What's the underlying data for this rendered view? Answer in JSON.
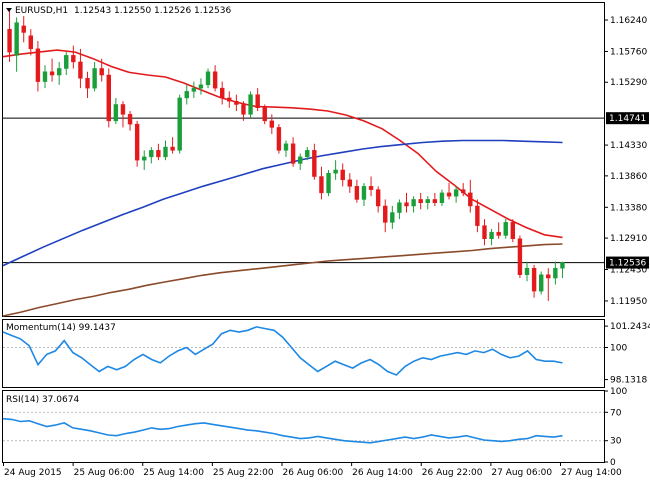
{
  "header": {
    "symbol": "EURUSD,H1",
    "open": "1.12543",
    "high": "1.12550",
    "low": "1.12526",
    "close": "1.12536"
  },
  "momentum_panel": {
    "label": "Momentum(14) 99.1437"
  },
  "rsi_panel": {
    "label": "RSI(14) 37.0674"
  },
  "colors": {
    "bull": "#1a9e3a",
    "bear": "#e31a1c",
    "sma_fast": "#e31a1c",
    "sma_mid": "#1f3fbf",
    "sma_slow": "#8b4a2a",
    "momentum": "#1e88e5",
    "rsi": "#1e88e5",
    "hline": "#000000",
    "axis": "#000000"
  },
  "chart_data": [
    {
      "type": "candlestick",
      "title": "EURUSD,H1",
      "ylim": [
        1.1172,
        1.165
      ],
      "yticks": [
        "1.16240",
        "1.15760",
        "1.15290",
        "1.14741",
        "1.14330",
        "1.13860",
        "1.13380",
        "1.12910",
        "1.12536",
        "1.12430",
        "1.11950"
      ],
      "horizontal_lines": [
        1.14741,
        1.12536
      ],
      "price_label": "1.12536",
      "level_label": "1.14741",
      "xticks": [
        "24 Aug 2015",
        "25 Aug 06:00",
        "25 Aug 14:00",
        "25 Aug 22:00",
        "26 Aug 06:00",
        "26 Aug 14:00",
        "26 Aug 22:00",
        "27 Aug 06:00",
        "27 Aug 14:00"
      ],
      "ohlc": [
        [
          1.161,
          1.164,
          1.156,
          1.1575
        ],
        [
          1.157,
          1.1628,
          1.1545,
          1.162
        ],
        [
          1.1615,
          1.163,
          1.159,
          1.1605
        ],
        [
          1.16,
          1.161,
          1.157,
          1.158
        ],
        [
          1.158,
          1.1592,
          1.1515,
          1.153
        ],
        [
          1.153,
          1.1555,
          1.152,
          1.1545
        ],
        [
          1.1545,
          1.1565,
          1.153,
          1.154
        ],
        [
          1.154,
          1.156,
          1.1525,
          1.155
        ],
        [
          1.155,
          1.1575,
          1.154,
          1.157
        ],
        [
          1.157,
          1.1585,
          1.155,
          1.156
        ],
        [
          1.156,
          1.158,
          1.152,
          1.1535
        ],
        [
          1.1535,
          1.1545,
          1.1505,
          1.152
        ],
        [
          1.152,
          1.156,
          1.1515,
          1.155
        ],
        [
          1.155,
          1.1565,
          1.153,
          1.154
        ],
        [
          1.154,
          1.155,
          1.146,
          1.147
        ],
        [
          1.147,
          1.1505,
          1.1465,
          1.1495
        ],
        [
          1.1495,
          1.15,
          1.146,
          1.148
        ],
        [
          1.148,
          1.1485,
          1.1455,
          1.1465
        ],
        [
          1.1465,
          1.147,
          1.14,
          1.141
        ],
        [
          1.141,
          1.1425,
          1.1395,
          1.1415
        ],
        [
          1.1415,
          1.143,
          1.1405,
          1.1425
        ],
        [
          1.1425,
          1.1435,
          1.141,
          1.1415
        ],
        [
          1.1415,
          1.144,
          1.141,
          1.143
        ],
        [
          1.143,
          1.1445,
          1.142,
          1.1425
        ],
        [
          1.1425,
          1.151,
          1.142,
          1.1505
        ],
        [
          1.1505,
          1.1525,
          1.1495,
          1.1515
        ],
        [
          1.1515,
          1.153,
          1.1505,
          1.152
        ],
        [
          1.152,
          1.1535,
          1.151,
          1.1525
        ],
        [
          1.1525,
          1.155,
          1.152,
          1.1545
        ],
        [
          1.1545,
          1.1555,
          1.1515,
          1.152
        ],
        [
          1.152,
          1.153,
          1.1495,
          1.1505
        ],
        [
          1.1505,
          1.1515,
          1.149,
          1.15
        ],
        [
          1.15,
          1.151,
          1.1485,
          1.1495
        ],
        [
          1.1495,
          1.15,
          1.147,
          1.148
        ],
        [
          1.148,
          1.1515,
          1.1475,
          1.151
        ],
        [
          1.151,
          1.152,
          1.1485,
          1.149
        ],
        [
          1.149,
          1.1495,
          1.1465,
          1.147
        ],
        [
          1.147,
          1.148,
          1.145,
          1.146
        ],
        [
          1.146,
          1.1465,
          1.142,
          1.1425
        ],
        [
          1.1425,
          1.144,
          1.1415,
          1.1435
        ],
        [
          1.1435,
          1.1445,
          1.14,
          1.1405
        ],
        [
          1.1405,
          1.142,
          1.1395,
          1.1415
        ],
        [
          1.1415,
          1.143,
          1.141,
          1.1425
        ],
        [
          1.1425,
          1.1435,
          1.138,
          1.1385
        ],
        [
          1.1385,
          1.14,
          1.135,
          1.136
        ],
        [
          1.136,
          1.1395,
          1.1355,
          1.139
        ],
        [
          1.139,
          1.141,
          1.138,
          1.1395
        ],
        [
          1.1395,
          1.1405,
          1.137,
          1.138
        ],
        [
          1.138,
          1.139,
          1.136,
          1.137
        ],
        [
          1.137,
          1.138,
          1.1345,
          1.135
        ],
        [
          1.135,
          1.1375,
          1.134,
          1.137
        ],
        [
          1.137,
          1.1385,
          1.1355,
          1.1365
        ],
        [
          1.1365,
          1.137,
          1.133,
          1.134
        ],
        [
          1.134,
          1.135,
          1.13,
          1.1315
        ],
        [
          1.1315,
          1.134,
          1.1305,
          1.133
        ],
        [
          1.133,
          1.135,
          1.132,
          1.1345
        ],
        [
          1.1345,
          1.136,
          1.133,
          1.134
        ],
        [
          1.134,
          1.1355,
          1.133,
          1.135
        ],
        [
          1.135,
          1.136,
          1.1335,
          1.1345
        ],
        [
          1.1345,
          1.1355,
          1.1335,
          1.135
        ],
        [
          1.135,
          1.136,
          1.134,
          1.1345
        ],
        [
          1.1345,
          1.1365,
          1.134,
          1.136
        ],
        [
          1.136,
          1.1375,
          1.135,
          1.1355
        ],
        [
          1.1355,
          1.137,
          1.1345,
          1.1365
        ],
        [
          1.1365,
          1.1375,
          1.1355,
          1.136
        ],
        [
          1.136,
          1.138,
          1.133,
          1.134
        ],
        [
          1.134,
          1.135,
          1.13,
          1.131
        ],
        [
          1.131,
          1.132,
          1.128,
          1.129
        ],
        [
          1.129,
          1.1305,
          1.128,
          1.13
        ],
        [
          1.13,
          1.1315,
          1.129,
          1.1295
        ],
        [
          1.1295,
          1.132,
          1.129,
          1.1315
        ],
        [
          1.1315,
          1.132,
          1.1285,
          1.129
        ],
        [
          1.129,
          1.1295,
          1.123,
          1.1235
        ],
        [
          1.1235,
          1.1255,
          1.1225,
          1.1245
        ],
        [
          1.1245,
          1.125,
          1.12,
          1.121
        ],
        [
          1.121,
          1.124,
          1.1205,
          1.1235
        ],
        [
          1.1235,
          1.1245,
          1.1195,
          1.123
        ],
        [
          1.123,
          1.1255,
          1.122,
          1.1245
        ],
        [
          1.1245,
          1.1255,
          1.123,
          1.1254
        ]
      ],
      "series": [
        {
          "values": [
            1.1568,
            1.1572,
            1.1575,
            1.1578,
            1.1575,
            1.1565,
            1.1553,
            1.1544,
            1.154,
            1.1537,
            1.1528,
            1.1517,
            1.1506,
            1.1498,
            1.1492,
            1.1491,
            1.149,
            1.1488,
            1.1485,
            1.1479,
            1.147,
            1.1458,
            1.144,
            1.142,
            1.1393,
            1.1372,
            1.135,
            1.1335,
            1.132,
            1.1307,
            1.1296,
            1.1292
          ]
        },
        {
          "values": [
            1.1249,
            1.1263,
            1.1277,
            1.129,
            1.1303,
            1.1315,
            1.1327,
            1.1338,
            1.135,
            1.136,
            1.137,
            1.1379,
            1.1388,
            1.1397,
            1.1404,
            1.1411,
            1.1417,
            1.1422,
            1.1427,
            1.1431,
            1.1434,
            1.1437,
            1.1439,
            1.144,
            1.144,
            1.144,
            1.1439,
            1.1438,
            1.1437
          ]
        },
        {
          "values": [
            1.1172,
            1.1178,
            1.1185,
            1.1191,
            1.1197,
            1.1202,
            1.1208,
            1.1213,
            1.1219,
            1.1224,
            1.1229,
            1.1234,
            1.1238,
            1.1241,
            1.1244,
            1.1247,
            1.125,
            1.1253,
            1.1256,
            1.1258,
            1.126,
            1.1262,
            1.1264,
            1.1266,
            1.1268,
            1.127,
            1.1272,
            1.1275,
            1.1277,
            1.1279,
            1.1281,
            1.1282
          ]
        }
      ]
    },
    {
      "type": "line",
      "title": "Momentum(14) 99.1437",
      "ylim": [
        97.7,
        101.6
      ],
      "yticks": [
        "101.2434",
        "100",
        "98.1318"
      ],
      "series": [
        {
          "values": [
            100.9,
            100.7,
            100.5,
            100.1,
            99.0,
            99.6,
            99.8,
            100.4,
            99.7,
            99.4,
            99.0,
            98.6,
            98.9,
            98.7,
            98.9,
            99.3,
            99.6,
            99.3,
            99.1,
            99.5,
            99.8,
            100.0,
            99.6,
            99.9,
            100.2,
            100.8,
            101.0,
            100.9,
            101.0,
            101.2,
            101.1,
            101.0,
            100.6,
            100.0,
            99.4,
            99.0,
            98.6,
            98.9,
            99.2,
            99.0,
            98.8,
            99.1,
            99.3,
            99.0,
            98.6,
            98.4,
            98.9,
            99.2,
            99.4,
            99.3,
            99.5,
            99.6,
            99.7,
            99.6,
            99.8,
            99.7,
            99.9,
            99.6,
            99.4,
            99.5,
            99.8,
            99.3,
            99.2,
            99.2,
            99.1
          ]
        }
      ]
    },
    {
      "type": "line",
      "title": "RSI(14) 37.0674",
      "ylim": [
        0,
        100
      ],
      "yticks": [
        "100",
        "70",
        "30",
        "0"
      ],
      "series": [
        {
          "values": [
            61,
            60,
            57,
            58,
            54,
            50,
            52,
            55,
            48,
            46,
            44,
            41,
            38,
            37,
            40,
            42,
            45,
            48,
            46,
            47,
            50,
            52,
            54,
            55,
            53,
            51,
            49,
            47,
            45,
            44,
            42,
            40,
            37,
            35,
            33,
            34,
            36,
            34,
            32,
            30,
            29,
            28,
            27,
            29,
            31,
            33,
            35,
            33,
            35,
            38,
            36,
            34,
            35,
            37,
            34,
            31,
            30,
            29,
            30,
            32,
            33,
            37,
            36,
            35,
            37
          ]
        }
      ]
    }
  ]
}
